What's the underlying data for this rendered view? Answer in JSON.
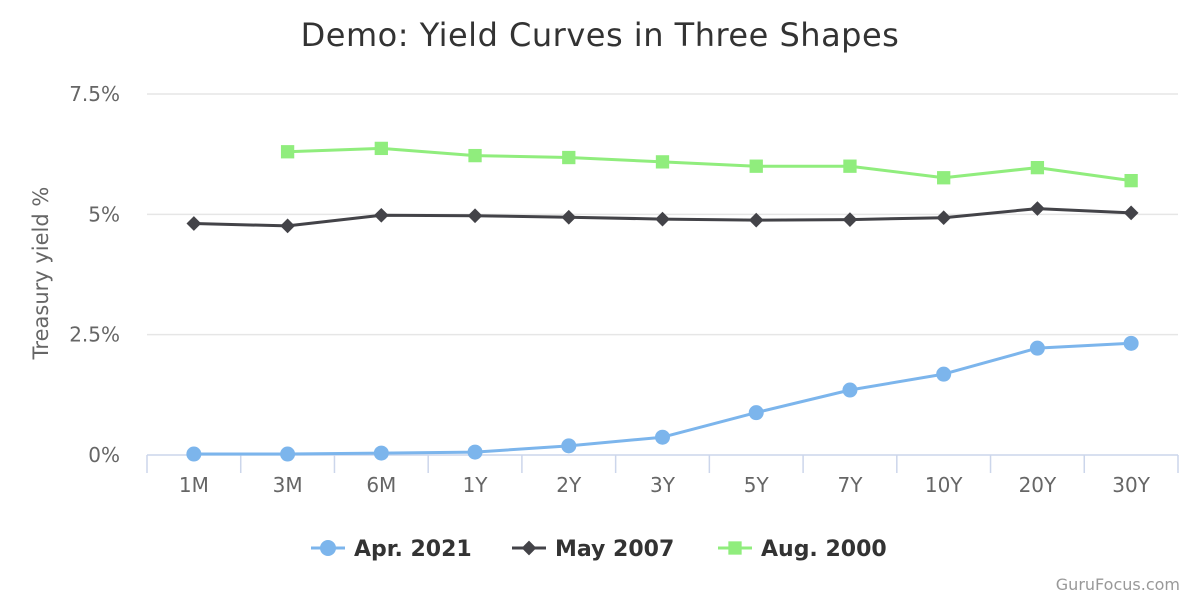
{
  "chart_data": {
    "type": "line",
    "title": "Demo: Yield Curves in Three Shapes",
    "ylabel": "Treasury yield %",
    "xlabel": "",
    "categories": [
      "1M",
      "3M",
      "6M",
      "1Y",
      "2Y",
      "3Y",
      "5Y",
      "7Y",
      "10Y",
      "20Y",
      "30Y"
    ],
    "ylim": [
      0,
      7.5
    ],
    "yticks": [
      0,
      2.5,
      5,
      7.5
    ],
    "ytick_labels": [
      "0%",
      "2.5%",
      "5%",
      "7.5%"
    ],
    "grid": true,
    "legend_position": "bottom",
    "credit": "GuruFocus.com",
    "series": [
      {
        "name": "Apr. 2021",
        "color": "#7cb5ec",
        "marker": "circle",
        "values": [
          0.02,
          0.02,
          0.04,
          0.06,
          0.19,
          0.37,
          0.88,
          1.35,
          1.68,
          2.22,
          2.32
        ]
      },
      {
        "name": "May 2007",
        "color": "#434348",
        "marker": "diamond",
        "values": [
          4.81,
          4.76,
          4.98,
          4.97,
          4.94,
          4.9,
          4.88,
          4.89,
          4.93,
          5.12,
          5.03
        ]
      },
      {
        "name": "Aug. 2000",
        "color": "#90ed7d",
        "marker": "square",
        "values": [
          null,
          6.3,
          6.37,
          6.22,
          6.18,
          6.09,
          6.0,
          6.0,
          5.76,
          5.97,
          5.7
        ]
      }
    ]
  }
}
